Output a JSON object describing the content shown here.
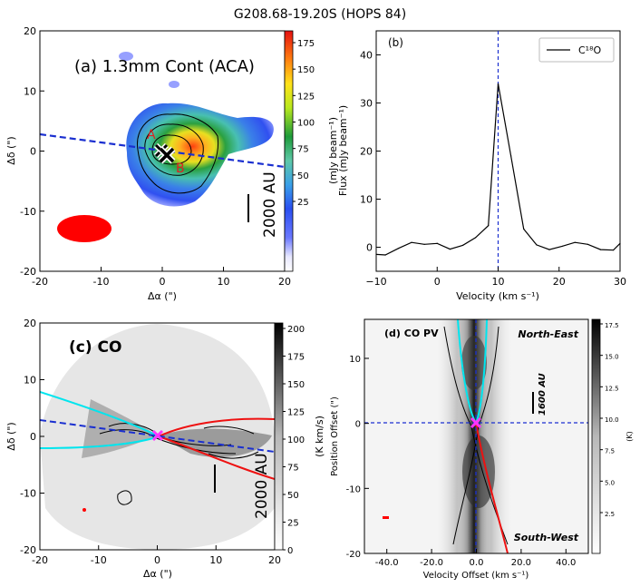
{
  "figure_title": "G208.68-19.20S (HOPS 84)",
  "colors": {
    "outflow_blue": "#00e5ee",
    "outflow_red": "#ee1111",
    "axis_dashed": "#1a2fd0",
    "center_marker": "#ff33ff",
    "beam": "#ff0000"
  },
  "panel_a": {
    "label": "(a) 1.3mm Cont (ACA)",
    "scale_bar_label": "2000 AU",
    "peak_label_a": "A",
    "peak_label_b": "B",
    "xlabel": "Δα (\")",
    "ylabel": "Δδ (\")",
    "colorbar_label": "(mJy beam⁻¹)",
    "xticks": [
      "-20",
      "-10",
      "0",
      "10",
      "20"
    ],
    "yticks": [
      "20",
      "10",
      "0",
      "-10",
      "-20"
    ],
    "colorbar_ticks": [
      "175",
      "150",
      "125",
      "100",
      "75",
      "50",
      "25"
    ]
  },
  "panel_b": {
    "label": "(b)",
    "legend_label": "C¹⁸O",
    "xlabel": "Velocity (km s⁻¹)",
    "ylabel": "Flux (mJy beam⁻¹)",
    "xticks": [
      "−10",
      "0",
      "10",
      "20",
      "30"
    ],
    "yticks": [
      "40",
      "30",
      "20",
      "10",
      "0"
    ]
  },
  "panel_c": {
    "label": "(c) CO",
    "scale_bar_label": "2000 AU",
    "xlabel": "Δα (\")",
    "ylabel": "Δδ (\")",
    "colorbar_label": "(K km/s)",
    "xticks": [
      "-20",
      "-10",
      "0",
      "10",
      "20"
    ],
    "yticks": [
      "20",
      "10",
      "0",
      "-10",
      "-20"
    ],
    "colorbar_ticks": [
      "200",
      "175",
      "150",
      "125",
      "100",
      "75",
      "50",
      "25",
      "0"
    ]
  },
  "panel_d": {
    "label": "(d) CO PV",
    "label_ne": "North-East",
    "label_sw": "South-West",
    "scale_bar_label": "1600 AU",
    "xlabel": "Velocity Offset (km s⁻¹)",
    "ylabel": "Position Offset (\")",
    "colorbar_label": "(K)",
    "xticks": [
      "-40.0",
      "-20.0",
      "0.0",
      "20.0",
      "40.0"
    ],
    "yticks": [
      "10",
      "0",
      "-10",
      "-20"
    ],
    "colorbar_ticks": [
      "17.5",
      "15.0",
      "12.5",
      "10.0",
      "7.5",
      "5.0",
      "2.5"
    ]
  },
  "chart_data": [
    {
      "type": "heatmap",
      "title": "(a) 1.3mm Cont (ACA)",
      "xlabel": "Δα (\")",
      "ylabel": "Δδ (\")",
      "xlim": [
        -20,
        20
      ],
      "ylim": [
        -20,
        20
      ],
      "colorbar": {
        "label": "(mJy beam⁻¹)",
        "range": [
          0,
          190
        ],
        "colormap": "jet"
      },
      "peak_position": [
        0,
        0
      ],
      "outflow_axis_angle_deg": 8
    },
    {
      "type": "line",
      "title": "(b)",
      "xlabel": "Velocity (km s⁻¹)",
      "ylabel": "Flux (mJy beam⁻¹)",
      "xlim": [
        -10,
        30
      ],
      "ylim": [
        -5,
        45
      ],
      "series": [
        {
          "name": "C¹⁸O",
          "x": [
            -10,
            -8.5,
            -6.3,
            -4.2,
            -2.1,
            0,
            2.1,
            4.2,
            6.3,
            8.4,
            10,
            12.1,
            14.2,
            16.3,
            18.4,
            20.5,
            22.6,
            24.7,
            26.8,
            28.9,
            30
          ],
          "y": [
            -1.5,
            -1.6,
            -0.2,
            1.0,
            0.6,
            0.8,
            -0.4,
            0.4,
            2.0,
            4.5,
            34,
            19,
            3.8,
            0.5,
            -0.5,
            0.2,
            1.0,
            0.6,
            -0.5,
            -0.6,
            0.8
          ]
        }
      ],
      "vline": 10
    },
    {
      "type": "heatmap",
      "title": "(c) CO",
      "xlabel": "Δα (\")",
      "ylabel": "Δδ (\")",
      "xlim": [
        -20,
        20
      ],
      "ylim": [
        -20,
        20
      ],
      "colorbar": {
        "label": "(K km/s)",
        "range": [
          0,
          210
        ],
        "colormap": "gray_r"
      }
    },
    {
      "type": "heatmap",
      "title": "(d) CO PV",
      "xlabel": "Velocity Offset (km s⁻¹)",
      "ylabel": "Position Offset (\")",
      "xlim": [
        -50,
        50
      ],
      "ylim": [
        -20,
        16
      ],
      "colorbar": {
        "label": "(K)",
        "range": [
          0,
          19
        ],
        "colormap": "gray_r"
      }
    }
  ]
}
